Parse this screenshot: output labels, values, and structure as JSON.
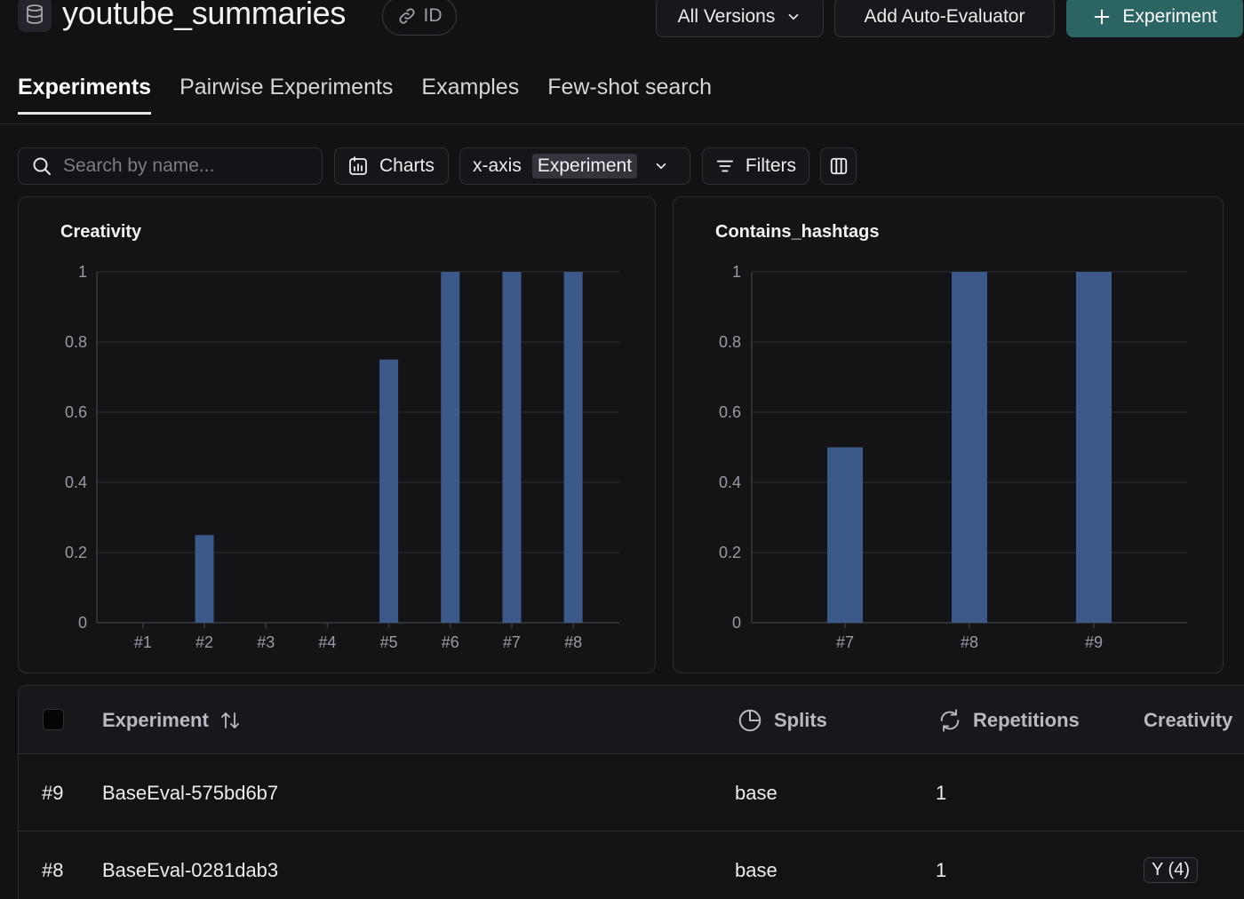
{
  "header": {
    "title": "youtube_summaries",
    "id_label": "ID",
    "versions_label": "All Versions",
    "auto_evaluator_label": "Add Auto-Evaluator",
    "experiment_label": "Experiment",
    "accent_color": "#2a6463"
  },
  "tabs": [
    {
      "label": "Experiments",
      "active": true
    },
    {
      "label": "Pairwise Experiments",
      "active": false
    },
    {
      "label": "Examples",
      "active": false
    },
    {
      "label": "Few-shot search",
      "active": false
    }
  ],
  "toolbar": {
    "search_placeholder": "Search by name...",
    "charts_label": "Charts",
    "xaxis_label": "x-axis",
    "xaxis_value": "Experiment",
    "filters_label": "Filters"
  },
  "chart_data": [
    {
      "type": "bar",
      "title": "Creativity",
      "categories": [
        "#1",
        "#2",
        "#3",
        "#4",
        "#5",
        "#6",
        "#7",
        "#8"
      ],
      "values": [
        0,
        0.25,
        0,
        0,
        0.75,
        1,
        1,
        1
      ],
      "ylim": [
        0,
        1
      ],
      "yticks": [
        "0",
        "0.2",
        "0.4",
        "0.6",
        "0.8",
        "1"
      ],
      "grid": true,
      "bar_color": "#3b5a8a"
    },
    {
      "type": "bar",
      "title": "Contains_hashtags",
      "categories": [
        "#7",
        "#8",
        "#9"
      ],
      "values": [
        0.5,
        1,
        1
      ],
      "ylim": [
        0,
        1
      ],
      "yticks": [
        "0",
        "0.2",
        "0.4",
        "0.6",
        "0.8",
        "1"
      ],
      "grid": true,
      "bar_color": "#3b5a8a"
    }
  ],
  "table": {
    "columns": {
      "experiment": "Experiment",
      "splits": "Splits",
      "repetitions": "Repetitions",
      "creativity": "Creativity"
    },
    "rows": [
      {
        "num": "#9",
        "name": "BaseEval-575bd6b7",
        "split": "base",
        "repetitions": "1",
        "creativity": ""
      },
      {
        "num": "#8",
        "name": "BaseEval-0281dab3",
        "split": "base",
        "repetitions": "1",
        "creativity": "Y (4)"
      }
    ]
  }
}
